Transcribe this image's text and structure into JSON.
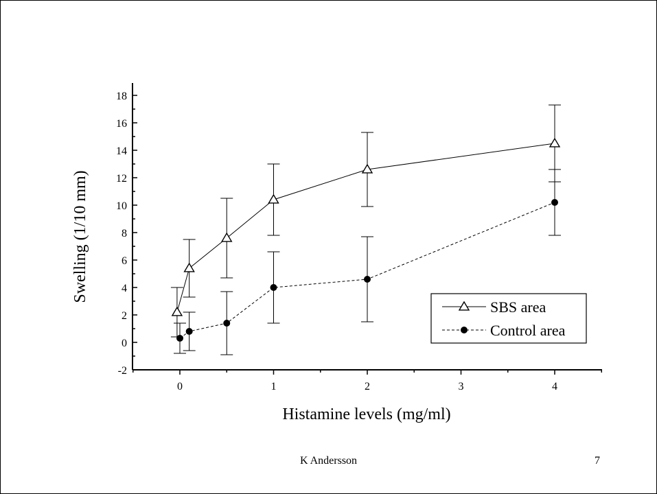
{
  "slide": {
    "author": "K Andersson",
    "page_number": "7"
  },
  "chart_data": {
    "type": "line",
    "title": "",
    "xlabel": "Histamine levels (mg/ml)",
    "ylabel": "Swelling (1/10 mm)",
    "xlim": [
      -0.5,
      4.5
    ],
    "ylim": [
      -2,
      19
    ],
    "x_ticks": [
      0,
      1,
      2,
      3,
      4
    ],
    "y_ticks": [
      -2,
      0,
      2,
      4,
      6,
      8,
      10,
      12,
      14,
      16,
      18
    ],
    "grid": false,
    "legend_position": "bottom-right",
    "series": [
      {
        "name": "SBS area",
        "marker": "open-triangle",
        "line_style": "solid",
        "color": "#000000",
        "x": [
          -0.03,
          0.1,
          0.5,
          1,
          2,
          4
        ],
        "y": [
          2.2,
          5.4,
          7.6,
          10.4,
          12.6,
          14.5
        ],
        "error": [
          1.8,
          2.1,
          2.9,
          2.6,
          2.7,
          2.8
        ]
      },
      {
        "name": "Control area",
        "marker": "filled-circle",
        "line_style": "dashed",
        "color": "#000000",
        "x": [
          0,
          0.1,
          0.5,
          1,
          2,
          4
        ],
        "y": [
          0.3,
          0.8,
          1.4,
          4.0,
          4.6,
          10.2
        ],
        "error": [
          1.1,
          1.4,
          2.3,
          2.6,
          3.1,
          2.4
        ]
      }
    ]
  }
}
